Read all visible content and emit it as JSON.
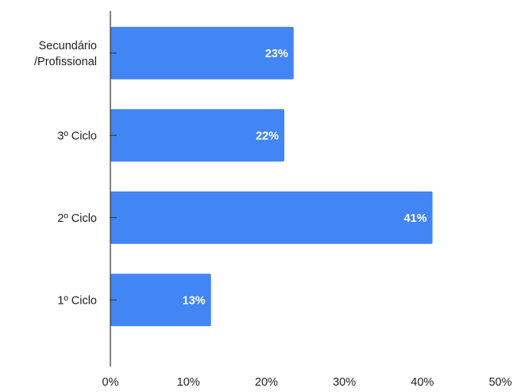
{
  "chart_data": {
    "type": "bar",
    "orientation": "horizontal",
    "title": "",
    "xlabel": "",
    "ylabel": "",
    "categories": [
      [
        "Secundário",
        "/Profissional"
      ],
      [
        "3º Ciclo"
      ],
      [
        "2º Ciclo"
      ],
      [
        "1º Ciclo"
      ]
    ],
    "values": [
      23.5,
      22.3,
      41.3,
      12.9
    ],
    "data_labels": [
      "23%",
      "22%",
      "41%",
      "13%"
    ],
    "xlim": [
      0,
      50
    ],
    "x_ticks": [
      "0%",
      "10%",
      "20%",
      "30%",
      "40%",
      "50%"
    ],
    "grid": false,
    "legend": "none",
    "colors": {
      "bar": "#4285f4",
      "axis": "#333333",
      "text": "#222222",
      "data_label": "#ffffff"
    }
  }
}
